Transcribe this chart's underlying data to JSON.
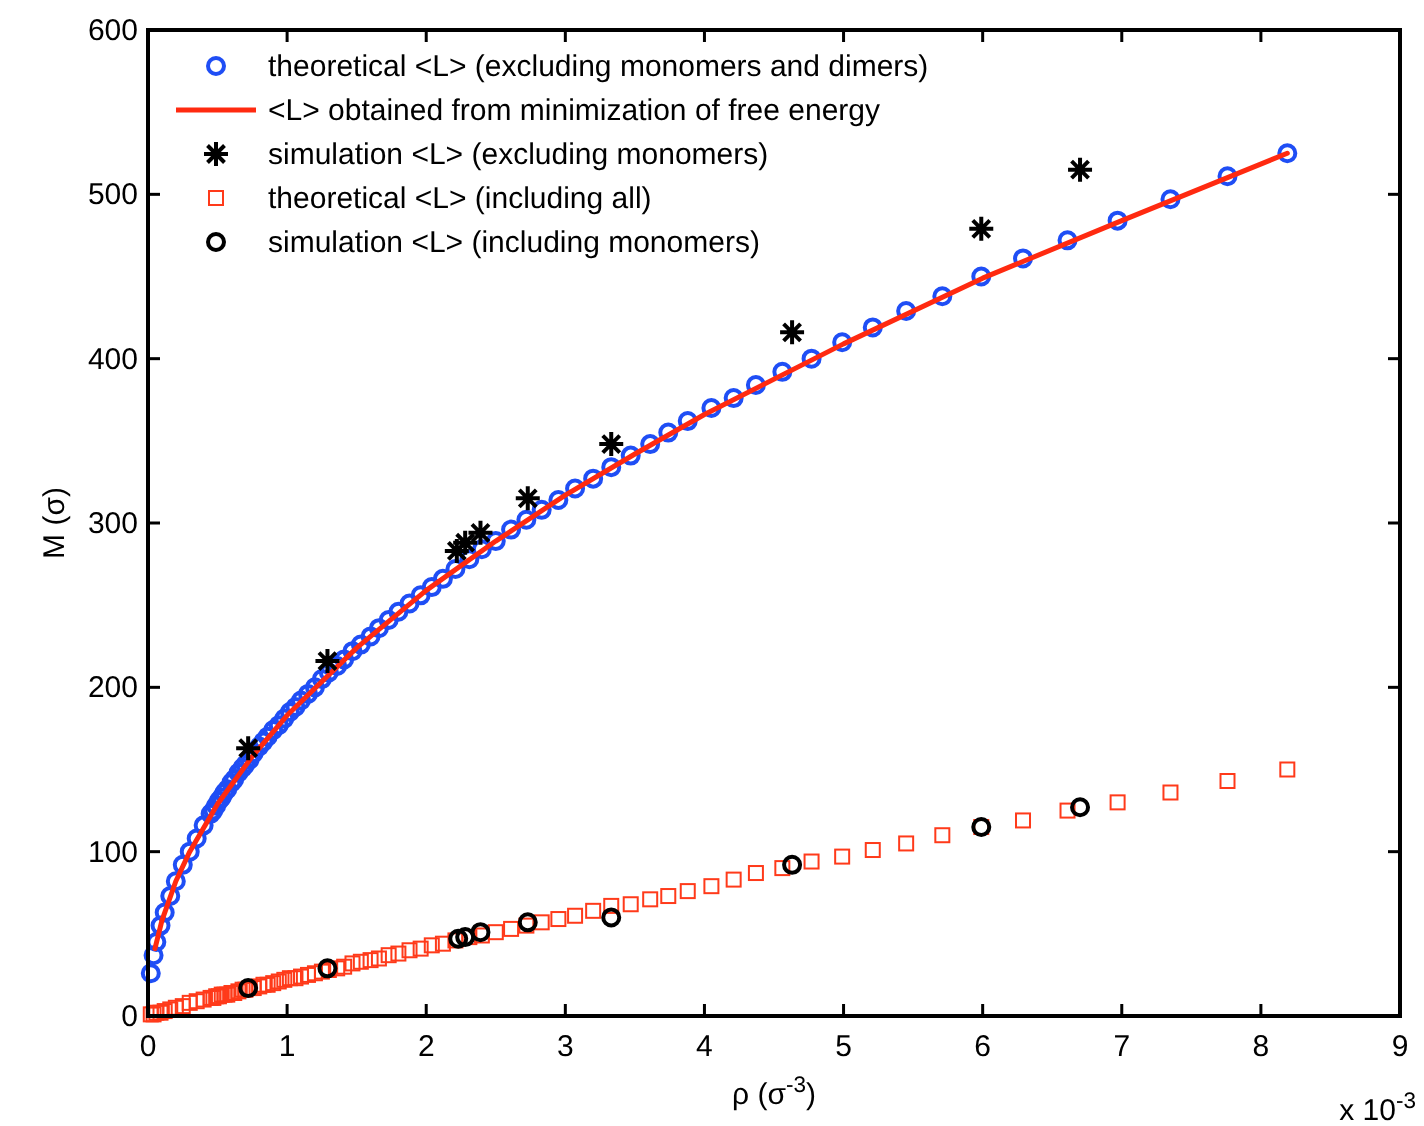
{
  "chart_data": {
    "type": "scatter",
    "xlabel": "ρ (σ$^{-3}$)",
    "ylabel": "M (σ)",
    "xlim": [
      0,
      9
    ],
    "ylim": [
      0,
      600
    ],
    "xticks": [
      0,
      1,
      2,
      3,
      4,
      5,
      6,
      7,
      8,
      9
    ],
    "yticks": [
      0,
      100,
      200,
      300,
      400,
      500,
      600
    ],
    "grid": false,
    "legend": "top left",
    "annotations": [
      "x 10$^{-3}$"
    ],
    "x": [
      0.02,
      0.04,
      0.06,
      0.09,
      0.12,
      0.16,
      0.2,
      0.25,
      0.3,
      0.35,
      0.4,
      0.45,
      0.47,
      0.49,
      0.51,
      0.53,
      0.55,
      0.57,
      0.6,
      0.62,
      0.65,
      0.68,
      0.7,
      0.73,
      0.76,
      0.8,
      0.83,
      0.86,
      0.9,
      0.94,
      0.98,
      1.02,
      1.06,
      1.1,
      1.15,
      1.2,
      1.25,
      1.3,
      1.36,
      1.41,
      1.47,
      1.53,
      1.6,
      1.66,
      1.73,
      1.8,
      1.88,
      1.96,
      2.04,
      2.12,
      2.21,
      2.31,
      2.4,
      2.5,
      2.61,
      2.72,
      2.83,
      2.95,
      3.07,
      3.2,
      3.33,
      3.47,
      3.61,
      3.74,
      3.88,
      4.05,
      4.21,
      4.37,
      4.56,
      4.77,
      4.99,
      5.21,
      5.45,
      5.71,
      5.99,
      6.29,
      6.61,
      6.97,
      7.35,
      7.76,
      8.19
    ],
    "series": [
      {
        "name": "theoretical <L> (excluding monomers and dimers)",
        "marker": "circle",
        "color": "#1f4ef5",
        "values": [
          26,
          37,
          45,
          55,
          63,
          73,
          82,
          92,
          100,
          108,
          116,
          123,
          125,
          128,
          131,
          133,
          136,
          138,
          142,
          144,
          148,
          151,
          153,
          156,
          160,
          164,
          167,
          170,
          174,
          177,
          181,
          185,
          188,
          192,
          196,
          200,
          205,
          209,
          213,
          217,
          222,
          226,
          231,
          236,
          241,
          246,
          251,
          256,
          261,
          266,
          272,
          278,
          284,
          289,
          296,
          302,
          308,
          314,
          321,
          327,
          334,
          341,
          348,
          355,
          362,
          370,
          376,
          384,
          392,
          400,
          410,
          419,
          429,
          438,
          450,
          461,
          472,
          484,
          497,
          511,
          525
        ]
      },
      {
        "name": "<L> obtained from minimization of free energy",
        "type": "line",
        "marker": "none",
        "line_style": "solid",
        "color": "#ff2a10",
        "x": [
          0.05,
          0.1,
          0.2,
          0.3,
          0.5,
          0.75,
          1,
          1.5,
          2,
          2.5,
          3,
          3.5,
          4,
          5,
          6,
          7,
          8.19
        ],
        "values": [
          41,
          58,
          82,
          100,
          129,
          158,
          183,
          224,
          259,
          289,
          317,
          342,
          366,
          409,
          449,
          484,
          525
        ]
      },
      {
        "name": "simulation <L> (excluding monomers)",
        "marker": "cross",
        "color": "#000000",
        "x": [
          0.72,
          1.29,
          2.22,
          2.28,
          2.39,
          2.73,
          3.33,
          4.63,
          5.99,
          6.7
        ],
        "values": [
          163,
          216,
          283,
          288,
          294,
          315,
          348,
          416,
          479,
          515
        ]
      },
      {
        "name": "theoretical <L> (including all)",
        "marker": "square",
        "color": "#ff3a1a",
        "values": [
          1,
          1,
          2,
          2,
          3,
          4,
          5,
          6,
          8,
          9,
          10,
          11,
          11,
          12,
          12,
          13,
          13,
          13,
          14,
          14,
          15,
          16,
          16,
          17,
          17,
          18,
          19,
          19,
          20,
          21,
          22,
          23,
          23,
          24,
          25,
          26,
          27,
          28,
          29,
          30,
          32,
          33,
          34,
          35,
          37,
          38,
          40,
          41,
          43,
          44,
          46,
          48,
          49,
          51,
          53,
          55,
          57,
          59,
          61,
          64,
          67,
          68,
          71,
          73,
          76,
          79,
          83,
          87,
          90,
          94,
          97,
          101,
          105,
          110,
          115,
          119,
          125,
          130,
          136,
          143,
          150
        ]
      },
      {
        "name": "simulation <L> (including monomers)",
        "marker": "circle",
        "color": "#000000",
        "x": [
          0.72,
          1.29,
          2.23,
          2.28,
          2.39,
          2.73,
          3.33,
          4.63,
          5.99,
          6.7
        ],
        "values": [
          17,
          29,
          47,
          48,
          51,
          57,
          60,
          92,
          115,
          127
        ]
      }
    ]
  }
}
